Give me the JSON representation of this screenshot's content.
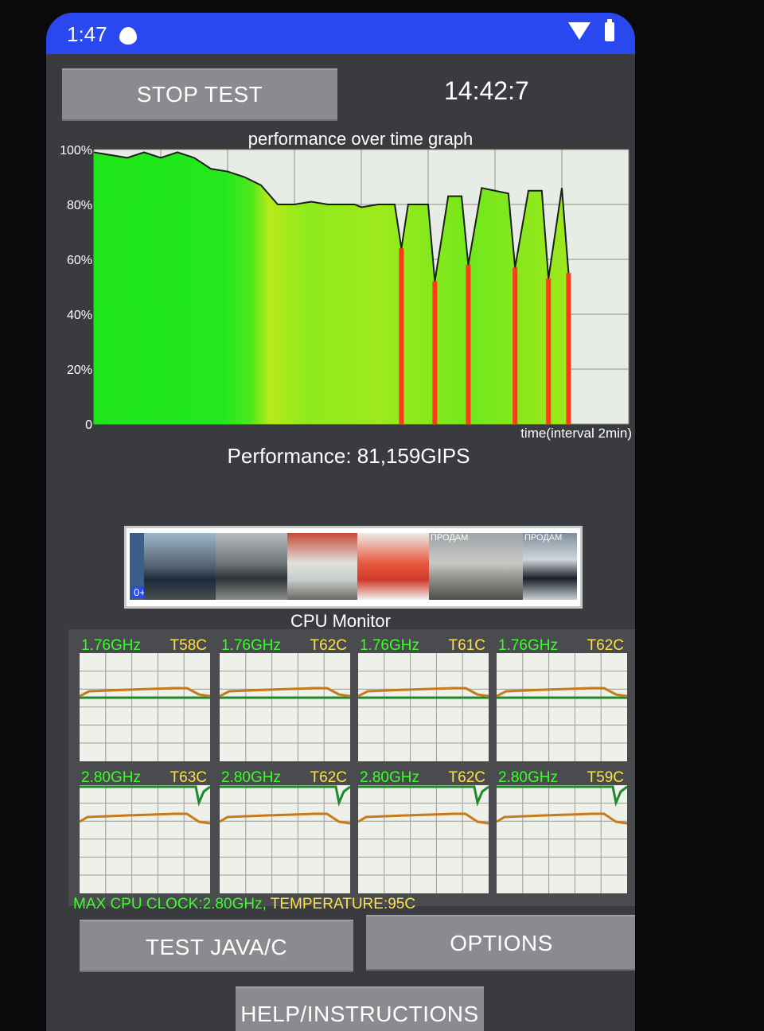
{
  "status_bar": {
    "time": "1:47"
  },
  "top": {
    "stop_button": "STOP TEST",
    "clock": "14:42:7"
  },
  "graph": {
    "title": "performance over time graph",
    "y_labels": [
      "100%",
      "80%",
      "60%",
      "40%",
      "20%",
      "0"
    ],
    "x_label": "time(interval 2min)"
  },
  "performance": {
    "label": "Performance: 81,159GIPS"
  },
  "ads": {
    "badge": "0+",
    "tag1": "ПРОДАМ",
    "tag2": "ПРОДАМ"
  },
  "cpu": {
    "title": "CPU Monitor",
    "cores": [
      {
        "freq": "1.76GHz",
        "temp": "T58C"
      },
      {
        "freq": "1.76GHz",
        "temp": "T62C"
      },
      {
        "freq": "1.76GHz",
        "temp": "T61C"
      },
      {
        "freq": "1.76GHz",
        "temp": "T62C"
      },
      {
        "freq": "2.80GHz",
        "temp": "T63C"
      },
      {
        "freq": "2.80GHz",
        "temp": "T62C"
      },
      {
        "freq": "2.80GHz",
        "temp": "T62C"
      },
      {
        "freq": "2.80GHz",
        "temp": "T59C"
      }
    ],
    "max_clock": "MAX CPU CLOCK:2.80GHz,",
    "temperature": "TEMPERATURE:95C"
  },
  "buttons": {
    "test": "TEST JAVA/C",
    "options": "OPTIONS",
    "help": "HELP/INSTRUCTIONS"
  },
  "chart_data": {
    "type": "area",
    "title": "performance over time graph",
    "xlabel": "time(interval 2min)",
    "ylabel": "",
    "ylim": [
      0,
      100
    ],
    "yticks": [
      "0",
      "20%",
      "40%",
      "60%",
      "80%",
      "100%"
    ],
    "x": [
      0,
      0.5,
      1,
      1.5,
      2,
      2.5,
      3,
      3.5,
      4,
      4.5,
      5,
      5.5,
      6,
      6.5,
      7,
      7.5,
      7.8,
      8,
      8.5,
      9,
      9.2,
      9.4,
      9.7,
      10,
      10.2,
      10.6,
      11,
      11.2,
      11.6,
      12,
      12.4,
      12.6,
      13,
      13.4,
      13.6,
      14,
      14.2
    ],
    "values": [
      99,
      98,
      97,
      99,
      97,
      99,
      97,
      93,
      92,
      90,
      87,
      80,
      80,
      81,
      80,
      80,
      80,
      79,
      80,
      80,
      64,
      80,
      80,
      80,
      52,
      83,
      83,
      58,
      86,
      85,
      84,
      57,
      85,
      85,
      53,
      86,
      55
    ],
    "grid": true
  }
}
